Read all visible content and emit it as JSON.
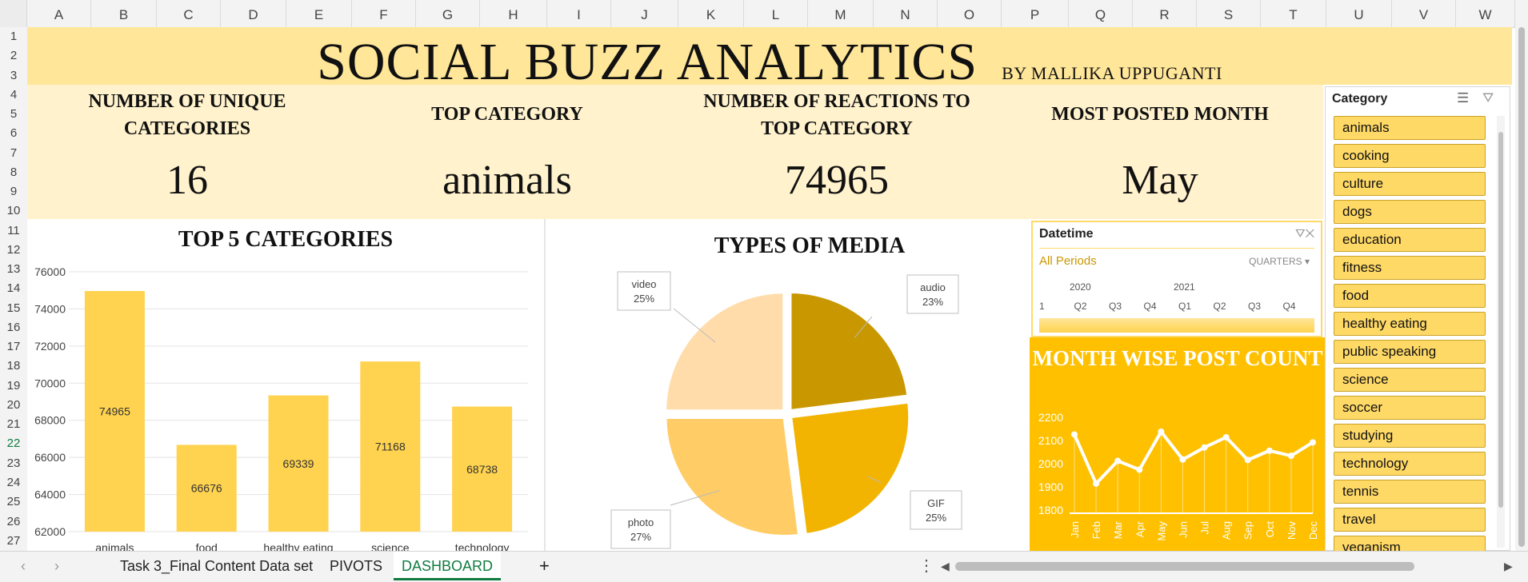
{
  "columns": [
    "A",
    "B",
    "C",
    "D",
    "E",
    "F",
    "G",
    "H",
    "I",
    "J",
    "K",
    "L",
    "M",
    "N",
    "O",
    "P",
    "Q",
    "R",
    "S",
    "T",
    "U",
    "V",
    "W"
  ],
  "rows": [
    "1",
    "2",
    "3",
    "4",
    "5",
    "6",
    "7",
    "8",
    "9",
    "10",
    "11",
    "12",
    "13",
    "14",
    "15",
    "16",
    "17",
    "18",
    "19",
    "20",
    "21",
    "22",
    "23",
    "24",
    "25",
    "26",
    "27"
  ],
  "selected_row": "22",
  "header": {
    "title": "SOCIAL BUZZ ANALYTICS",
    "byline": "BY MALLIKA UPPUGANTI"
  },
  "kpis": [
    {
      "label_line1": "NUMBER OF UNIQUE",
      "label_line2": "CATEGORIES",
      "value": "16"
    },
    {
      "label_line1": "TOP CATEGORY",
      "label_line2": "",
      "value": "animals"
    },
    {
      "label_line1": "NUMBER OF REACTIONS TO",
      "label_line2": "TOP CATEGORY",
      "value": "74965"
    },
    {
      "label_line1": "MOST POSTED MONTH",
      "label_line2": "",
      "value": "May"
    }
  ],
  "chart_data": [
    {
      "type": "bar",
      "title": "TOP 5 CATEGORIES",
      "categories": [
        "animals",
        "food",
        "healthy eating",
        "science",
        "technology"
      ],
      "values": [
        74965,
        66676,
        69339,
        71168,
        68738
      ],
      "ylim": [
        62000,
        76000
      ],
      "yticks": [
        "62000",
        "64000",
        "66000",
        "68000",
        "70000",
        "72000",
        "74000",
        "76000"
      ],
      "color": "#ffd34f",
      "grid": true
    },
    {
      "type": "pie",
      "title": "TYPES OF MEDIA",
      "labels": [
        "audio",
        "GIF",
        "photo",
        "video"
      ],
      "values": [
        23,
        25,
        27,
        25
      ],
      "percent_labels": [
        "23%",
        "25%",
        "27%",
        "25%"
      ],
      "colors": [
        "#c99700",
        "#f2b400",
        "#ffcc66",
        "#ffdcaa"
      ]
    },
    {
      "type": "line",
      "title": "MONTH WISE POST COUNT",
      "x": [
        "Jan",
        "Feb",
        "Mar",
        "Apr",
        "May",
        "Jun",
        "Jul",
        "Aug",
        "Sep",
        "Oct",
        "Nov",
        "Dec"
      ],
      "values": [
        2126,
        1914,
        2012,
        1974,
        2138,
        2018,
        2070,
        2114,
        2016,
        2056,
        2034,
        2092
      ],
      "ylim": [
        1800,
        2200
      ],
      "yticks": [
        "1800",
        "1900",
        "2000",
        "2100",
        "2200"
      ],
      "color": "#ffffff"
    }
  ],
  "timeline": {
    "title": "Datetime",
    "period": "All Periods",
    "level": "QUARTERS",
    "years": [
      "2020",
      "2021"
    ],
    "quarters": [
      "1",
      "Q2",
      "Q3",
      "Q4",
      "Q1",
      "Q2",
      "Q3",
      "Q4"
    ]
  },
  "slicer": {
    "title": "Category",
    "items": [
      "animals",
      "cooking",
      "culture",
      "dogs",
      "education",
      "fitness",
      "food",
      "healthy eating",
      "public speaking",
      "science",
      "soccer",
      "studying",
      "technology",
      "tennis",
      "travel",
      "veganism"
    ]
  },
  "tabs": {
    "items": [
      "Task 3_Final Content Data set",
      "PIVOTS",
      "DASHBOARD"
    ],
    "active": "DASHBOARD",
    "add": "+"
  }
}
